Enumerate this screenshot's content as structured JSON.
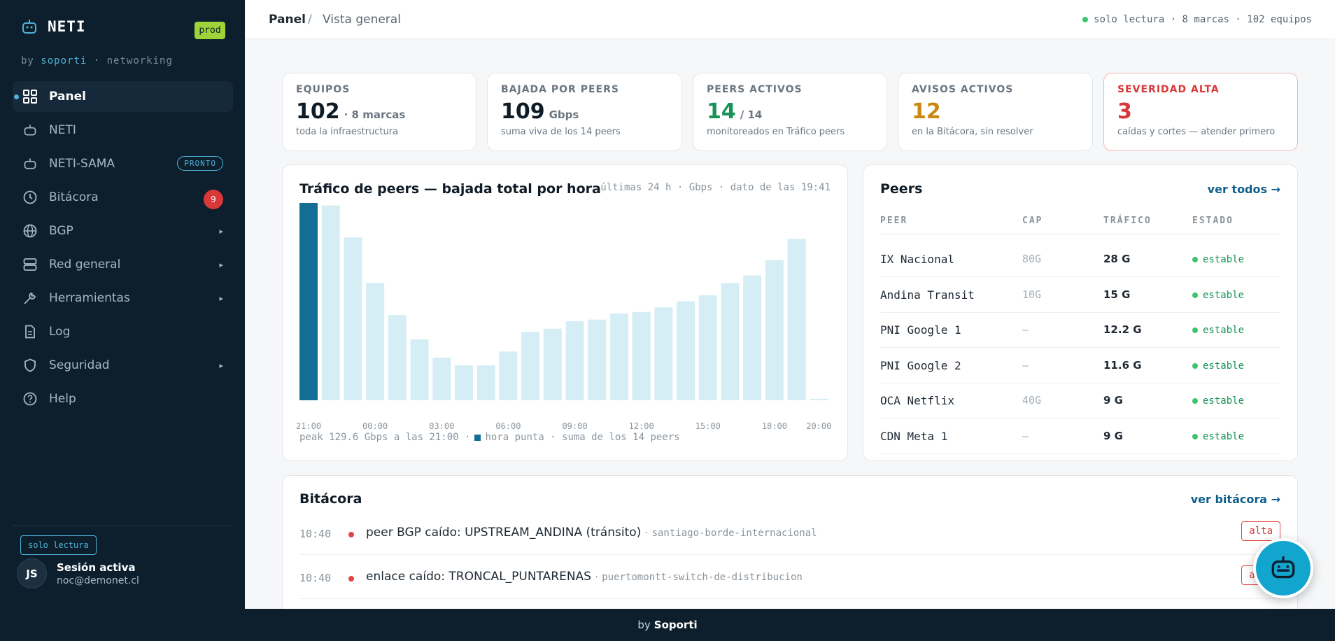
{
  "app": {
    "name": "NETI",
    "env": "prod",
    "by": "by",
    "by_brand": "soporti",
    "by_suffix": "· networking"
  },
  "sidebar": {
    "items": [
      {
        "label": "Panel",
        "icon": "grid-icon"
      },
      {
        "label": "NETI",
        "icon": "robot-icon"
      },
      {
        "label": "NETI-SAMA",
        "icon": "robot-icon",
        "pill": "PRONTO"
      },
      {
        "label": "Bitácora",
        "icon": "clock-icon",
        "count": "9"
      },
      {
        "label": "BGP",
        "icon": "globe-icon"
      },
      {
        "label": "Red general",
        "icon": "server-icon"
      },
      {
        "label": "Herramientas",
        "icon": "wrench-icon"
      },
      {
        "label": "Log",
        "icon": "document-icon"
      },
      {
        "label": "Seguridad",
        "icon": "shield-icon"
      },
      {
        "label": "Help",
        "icon": "help-icon"
      }
    ],
    "readonly_badge": "solo lectura",
    "user": {
      "initials": "JS",
      "name": "Sesión activa",
      "email": "noc@demonet.cl"
    }
  },
  "topbar": {
    "crumb1": "Panel",
    "crumb_sep": "/",
    "crumb2": "Vista general",
    "status": "solo lectura · 8 marcas · 102 equipos"
  },
  "kpis": [
    {
      "label": "EQUIPOS",
      "value": "102",
      "unit": "· 8 marcas",
      "sub": "toda la infraestructura",
      "color": "#0f1c27"
    },
    {
      "label": "BAJADA POR PEERS",
      "value": "109",
      "unit": "Gbps",
      "sub": "suma viva de los 14 peers",
      "color": "#0f1c27"
    },
    {
      "label": "PEERS ACTIVOS",
      "value": "14",
      "unit": "/ 14",
      "sub": "monitoreados en Tráfico peers",
      "color": "#17935a"
    },
    {
      "label": "AVISOS ACTIVOS",
      "value": "12",
      "unit": "",
      "sub": "en la Bitácora, sin resolver",
      "color": "#c98a12"
    },
    {
      "label": "SEVERIDAD ALTA",
      "value": "3",
      "unit": "",
      "sub": "caídas y cortes — atender primero",
      "color": "#d93838"
    }
  ],
  "traffic": {
    "title": "Tráfico de peers — bajada total por hora",
    "meta": "últimas 24 h · Gbps · dato de las 19:41",
    "foot_peak": "peak 129.6 Gbps a las 21:00 ·",
    "foot_legend": "hora punta · suma de los 14 peers"
  },
  "chart_data": {
    "type": "bar",
    "x_tick_labels": [
      "21:00",
      "00:00",
      "03:00",
      "06:00",
      "09:00",
      "12:00",
      "15:00",
      "18:00",
      "20:00"
    ],
    "values": [
      129.6,
      128,
      107,
      77,
      56,
      40,
      28,
      23,
      23,
      32,
      45,
      47,
      52,
      53,
      57,
      58,
      61,
      65,
      69,
      77,
      82,
      92,
      106,
      1
    ],
    "highlight_index": 0,
    "colors": {
      "highlight": "#136e96",
      "bar": "#d5eef5"
    }
  },
  "peers": {
    "title": "Peers",
    "link": "ver todos →",
    "headers": [
      "PEER",
      "CAP",
      "TRÁFICO",
      "ESTADO"
    ],
    "rows": [
      {
        "peer": "IX Nacional",
        "cap": "80G",
        "traffic": "28 G",
        "status": "estable"
      },
      {
        "peer": "Andina Transit",
        "cap": "10G",
        "traffic": "15 G",
        "status": "estable"
      },
      {
        "peer": "PNI Google 1",
        "cap": "—",
        "traffic": "12.2 G",
        "status": "estable"
      },
      {
        "peer": "PNI Google 2",
        "cap": "—",
        "traffic": "11.6 G",
        "status": "estable"
      },
      {
        "peer": "OCA Netflix",
        "cap": "40G",
        "traffic": "9 G",
        "status": "estable"
      },
      {
        "peer": "CDN Meta 1",
        "cap": "—",
        "traffic": "9 G",
        "status": "estable"
      }
    ]
  },
  "log": {
    "title": "Bitácora",
    "link": "ver bitácora →",
    "rows": [
      {
        "time": "10:40",
        "msg": "peer BGP caído: UPSTREAM_ANDINA (tránsito)",
        "sep": "·",
        "host": "santiago-borde-internacional",
        "sev": "alta"
      },
      {
        "time": "10:40",
        "msg": "enlace caído: TRONCAL_PUNTARENAS",
        "sep": "·",
        "host": "puertomontt-switch-de-distribucion",
        "sev": "alta"
      }
    ]
  },
  "footer": {
    "by": "by",
    "brand": "Soporti"
  }
}
